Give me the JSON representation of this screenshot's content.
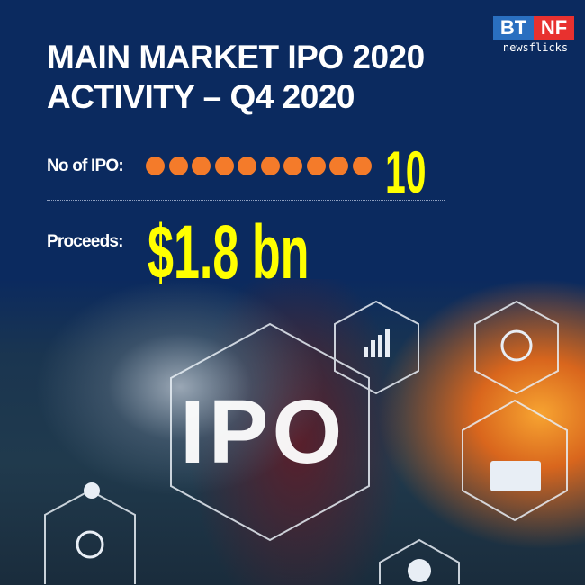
{
  "title_line1": "MAIN MARKET IPO 2020",
  "title_line2": "ACTIVITY – Q4 2020",
  "logo": {
    "left": "BT",
    "right": "NF",
    "sub": "newsflicks"
  },
  "ipo_count": {
    "label": "No of IPO:",
    "value": "10",
    "dot_count": 10,
    "dot_color": "#f47b2a"
  },
  "proceeds": {
    "label": "Proceeds:",
    "value": "$1.8 bn"
  },
  "image_text": "IPO",
  "colors": {
    "background": "#0b2a5f",
    "highlight": "#ffff00"
  }
}
